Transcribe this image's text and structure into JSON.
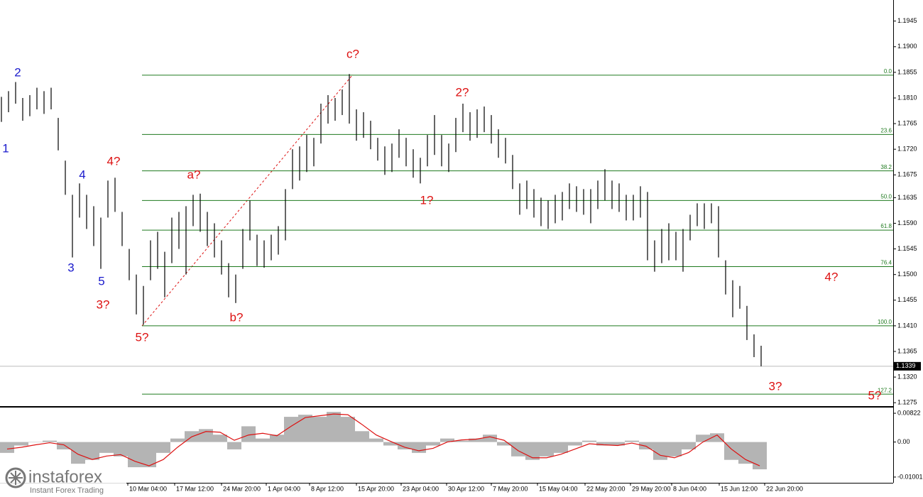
{
  "chart_data": [
    {
      "type": "ohlc",
      "color": "#000000",
      "x_labels": [
        "10 Mar 04:00",
        "17 Mar 12:00",
        "24 Mar 20:00",
        "1 Apr 04:00",
        "8 Apr 12:00",
        "15 Apr 20:00",
        "23 Apr 04:00",
        "30 Apr 12:00",
        "7 May 20:00",
        "15 May 04:00",
        "22 May 20:00",
        "29 May 20:00",
        "8 Jun 04:00",
        "15 Jun 12:00",
        "22 Jun 20:00"
      ],
      "high": [
        1.1812,
        1.1822,
        1.1838,
        1.181,
        1.1815,
        1.1828,
        1.1822,
        1.1828,
        1.1775,
        1.17,
        1.164,
        1.166,
        1.164,
        1.162,
        1.16,
        1.1665,
        1.167,
        1.161,
        1.1545,
        1.15,
        1.148,
        1.156,
        1.1575,
        1.154,
        1.16,
        1.161,
        1.162,
        1.164,
        1.1642,
        1.161,
        1.159,
        1.156,
        1.152,
        1.15,
        1.158,
        1.163,
        1.157,
        1.156,
        1.157,
        1.1585,
        1.165,
        1.172,
        1.1725,
        1.1745,
        1.174,
        1.18,
        1.1815,
        1.181,
        1.1825,
        1.1852,
        1.179,
        1.1785,
        1.177,
        1.174,
        1.1725,
        1.173,
        1.1755,
        1.174,
        1.172,
        1.1705,
        1.1745,
        1.178,
        1.1745,
        1.173,
        1.1775,
        1.18,
        1.1785,
        1.179,
        1.1795,
        1.178,
        1.1755,
        1.174,
        1.171,
        1.166,
        1.1665,
        1.165,
        1.1635,
        1.163,
        1.164,
        1.1645,
        1.166,
        1.1655,
        1.165,
        1.165,
        1.1665,
        1.1685,
        1.1665,
        1.166,
        1.164,
        1.164,
        1.1655,
        1.1645,
        1.156,
        1.158,
        1.159,
        1.1575,
        1.158,
        1.1605,
        1.1625,
        1.1625,
        1.1625,
        1.162,
        1.1525,
        1.149,
        1.148,
        1.1445,
        1.1395,
        1.1375
      ],
      "low": [
        1.1768,
        1.1785,
        1.18,
        1.177,
        1.1778,
        1.179,
        1.1782,
        1.179,
        1.1718,
        1.164,
        1.153,
        1.16,
        1.158,
        1.155,
        1.151,
        1.16,
        1.161,
        1.155,
        1.149,
        1.143,
        1.1412,
        1.149,
        1.151,
        1.146,
        1.152,
        1.1545,
        1.15,
        1.1585,
        1.1575,
        1.155,
        1.153,
        1.15,
        1.146,
        1.145,
        1.151,
        1.156,
        1.1515,
        1.1512,
        1.1525,
        1.1535,
        1.156,
        1.165,
        1.1665,
        1.168,
        1.169,
        1.173,
        1.1765,
        1.177,
        1.178,
        1.1765,
        1.1735,
        1.174,
        1.172,
        1.17,
        1.1675,
        1.168,
        1.1705,
        1.169,
        1.167,
        1.166,
        1.169,
        1.171,
        1.169,
        1.168,
        1.1715,
        1.175,
        1.1735,
        1.174,
        1.175,
        1.173,
        1.1705,
        1.1695,
        1.165,
        1.1605,
        1.1615,
        1.16,
        1.1585,
        1.158,
        1.159,
        1.1595,
        1.1615,
        1.161,
        1.1605,
        1.159,
        1.1615,
        1.163,
        1.1615,
        1.161,
        1.1595,
        1.1595,
        1.16,
        1.1525,
        1.1505,
        1.152,
        1.1525,
        1.1525,
        1.1505,
        1.156,
        1.1585,
        1.158,
        1.159,
        1.153,
        1.1465,
        1.1425,
        1.144,
        1.1385,
        1.1355,
        1.1339
      ],
      "ylim": [
        1.1269,
        1.1982
      ],
      "yticks": [
        1.1945,
        {
          "value": 1.19,
          "label": "1.1900"
        },
        1.1855,
        {
          "value": 1.181,
          "label": "1.1810"
        },
        1.1765,
        {
          "value": 1.172,
          "label": "1.1720"
        },
        1.1675,
        1.1635,
        {
          "value": 1.159,
          "label": "1.1590"
        },
        1.1545,
        {
          "value": 1.15,
          "label": "1.1500"
        },
        1.1455,
        {
          "value": 1.141,
          "label": "1.1410"
        },
        1.1365,
        {
          "value": 1.132,
          "label": "1.1320"
        },
        1.1275
      ],
      "current_price": 1.1339,
      "fib_color": "#1f7a1f",
      "fib_levels": [
        {
          "label": "0.0",
          "value": 1.185
        },
        {
          "label": "23.6",
          "value": 1.1746
        },
        {
          "label": "38.2",
          "value": 1.1682
        },
        {
          "label": "50.0",
          "value": 1.163
        },
        {
          "label": "61.8",
          "value": 1.1578
        },
        {
          "label": "76.4",
          "value": 1.1514
        },
        {
          "label": "100.0",
          "value": 1.141
        },
        {
          "label": "127.2",
          "value": 1.129
        }
      ],
      "annotations": [
        {
          "text": "1",
          "color": "#1a1acc"
        },
        {
          "text": "2",
          "color": "#1a1acc"
        },
        {
          "text": "3",
          "color": "#1a1acc"
        },
        {
          "text": "4",
          "color": "#1a1acc"
        },
        {
          "text": "5",
          "color": "#1a1acc"
        },
        {
          "text": "4?",
          "color": "#dd1111"
        },
        {
          "text": "3?",
          "color": "#dd1111"
        },
        {
          "text": "5?",
          "color": "#dd1111"
        },
        {
          "text": "a?",
          "color": "#dd1111"
        },
        {
          "text": "b?",
          "color": "#dd1111"
        },
        {
          "text": "c?",
          "color": "#dd1111"
        },
        {
          "text": "1?",
          "color": "#dd1111"
        },
        {
          "text": "2?",
          "color": "#dd1111"
        },
        {
          "text": "4?",
          "color": "#dd1111"
        },
        {
          "text": "3?",
          "color": "#dd1111"
        },
        {
          "text": "5?",
          "color": "#dd1111"
        }
      ]
    },
    {
      "type": "macd",
      "histogram_color": "#b4b4b4",
      "signal_color": "#dd1111",
      "histogram": [
        -0.0031,
        -0.001,
        0.0,
        0.0004,
        -0.0021,
        -0.0062,
        -0.0051,
        -0.0031,
        -0.0041,
        -0.0072,
        -0.0072,
        -0.0031,
        0.001,
        0.0031,
        0.0037,
        0.0021,
        -0.0021,
        0.0045,
        0.001,
        0.0021,
        0.0072,
        0.0078,
        0.0072,
        0.0086,
        0.0072,
        0.0031,
        0.001,
        -0.001,
        -0.0021,
        -0.0031,
        -0.001,
        0.001,
        0.0004,
        0.001,
        0.0021,
        -0.001,
        -0.0041,
        -0.0051,
        -0.0041,
        -0.0031,
        -0.001,
        0.0004,
        -0.001,
        -0.001,
        0.0004,
        -0.0021,
        -0.0051,
        -0.0041,
        -0.0021,
        0.0021,
        0.0025,
        -0.0051,
        -0.0062,
        -0.0078
      ],
      "signal": [
        -0.002,
        -0.0015,
        -0.0008,
        -0.0002,
        -0.0008,
        -0.0035,
        -0.005,
        -0.004,
        -0.0036,
        -0.0055,
        -0.0068,
        -0.005,
        -0.0015,
        0.0015,
        0.003,
        0.0028,
        0.0005,
        0.002,
        0.0025,
        0.0018,
        0.0045,
        0.007,
        0.0075,
        0.008,
        0.0078,
        0.005,
        0.002,
        0.0002,
        -0.0015,
        -0.0025,
        -0.0018,
        0.0,
        0.0006,
        0.0008,
        0.0015,
        0.0005,
        -0.0025,
        -0.0045,
        -0.0045,
        -0.0035,
        -0.002,
        -0.0005,
        -0.0008,
        -0.001,
        -0.0003,
        -0.0012,
        -0.0038,
        -0.0045,
        -0.003,
        0.0,
        0.002,
        -0.002,
        -0.005,
        -0.0068
      ],
      "ylim": [
        -0.01165,
        0.00945
      ],
      "yticks": [
        0.00822,
        {
          "value": 0,
          "label": "0.00"
        },
        -0.01001
      ]
    }
  ],
  "logo": {
    "name": "instaforex",
    "tagline": "Instant Forex Trading"
  }
}
